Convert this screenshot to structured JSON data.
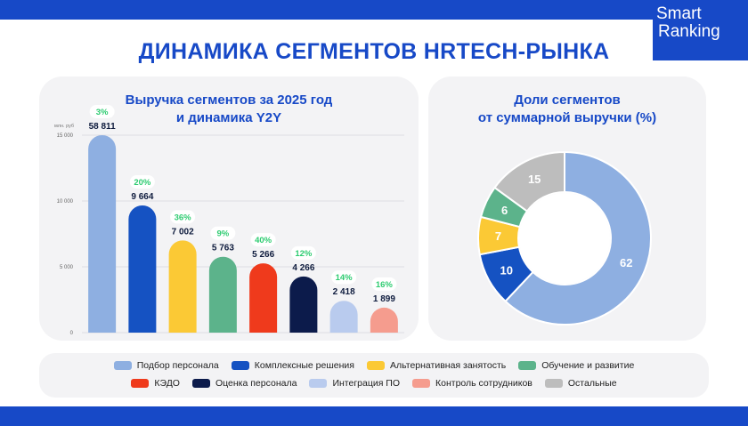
{
  "page": {
    "title": "ДИНАМИКА СЕГМЕНТОВ HRTECH-РЫНКА",
    "logo_line1": "Smart",
    "logo_line2": "Ranking"
  },
  "bar_panel": {
    "title_line1": "Выручка сегментов за 2025 год",
    "title_line2": "и динамика Y2Y"
  },
  "pie_panel": {
    "title_line1": "Доли сегментов",
    "title_line2": "от суммарной выручки (%)"
  },
  "colors": {
    "brand": "#1749c7",
    "growth_badge_text": "#2ecc71",
    "panel_bg": "#f3f3f5"
  },
  "chart_data": [
    {
      "type": "bar",
      "title": "Выручка сегментов за 2025 год и динамика Y2Y",
      "unit_label": "млн. руб",
      "ylim": [
        0,
        15000
      ],
      "y_ticks": [
        0,
        5000,
        10000,
        15000
      ],
      "y_tick_labels": [
        "0",
        "5 000",
        "10 000",
        "15 000"
      ],
      "grid": true,
      "categories": [
        "Подбор персонала",
        "Комплексные решения",
        "Альтернативная занятость",
        "Обучение и развитие",
        "КЭДО",
        "Оценка персонала",
        "Интеграция ПО",
        "Контроль сотрудников"
      ],
      "values": [
        58811,
        9664,
        7002,
        5763,
        5266,
        4266,
        2418,
        1899
      ],
      "value_labels": [
        "58 811",
        "9 664",
        "7 002",
        "5 763",
        "5 266",
        "4 266",
        "2 418",
        "1 899"
      ],
      "growth_labels": [
        "3%",
        "20%",
        "36%",
        "9%",
        "40%",
        "12%",
        "14%",
        "16%"
      ],
      "colors": [
        "#8eafe1",
        "#1552c2",
        "#fbc935",
        "#5cb38b",
        "#ef3a1c",
        "#0c1b4b",
        "#b9cbee",
        "#f59c8e"
      ]
    },
    {
      "type": "pie",
      "title": "Доли сегментов от суммарной выручки (%)",
      "labels": [
        "Подбор персонала",
        "Комплексные решения",
        "Альтернативная занятость",
        "Обучение и развитие",
        "Остальные"
      ],
      "values": [
        62,
        10,
        7,
        6,
        15
      ],
      "colors": [
        "#8eafe1",
        "#1552c2",
        "#fbc935",
        "#5cb38b",
        "#bdbdbd"
      ]
    }
  ],
  "legend": {
    "row1": [
      {
        "label": "Подбор персонала",
        "color": "#8eafe1"
      },
      {
        "label": "Комплексные решения",
        "color": "#1552c2"
      },
      {
        "label": "Альтернативная занятость",
        "color": "#fbc935"
      },
      {
        "label": "Обучение и развитие",
        "color": "#5cb38b"
      }
    ],
    "row2": [
      {
        "label": "КЭДО",
        "color": "#ef3a1c"
      },
      {
        "label": "Оценка персонала",
        "color": "#0c1b4b"
      },
      {
        "label": "Интеграция ПО",
        "color": "#b9cbee"
      },
      {
        "label": "Контроль сотрудников",
        "color": "#f59c8e"
      },
      {
        "label": "Остальные",
        "color": "#bdbdbd"
      }
    ]
  }
}
